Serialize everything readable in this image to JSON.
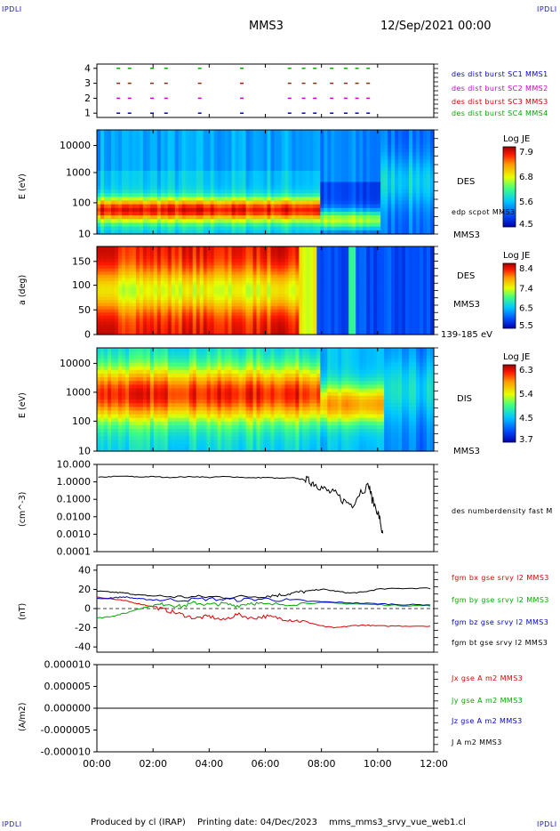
{
  "header": {
    "corner_tl": "IPDLI",
    "corner_tr": "IPDLI",
    "corner_bl": "IPDLI",
    "corner_br": "IPDLI",
    "spacecraft": "MMS3",
    "datetime": "12/Sep/2021 00:00"
  },
  "footer": {
    "produced_by": "Produced by cl (IRAP)",
    "printing_date": "Printing date: 04/Dec/2023",
    "file_name": "mms_mms3_srvy_vue_web1.cl"
  },
  "time_axis": {
    "range_hours": [
      0,
      12
    ],
    "ticks": [
      "00:00",
      "02:00",
      "04:00",
      "06:00",
      "08:00",
      "10:00",
      "12:00"
    ]
  },
  "panels": {
    "burst": {
      "yticks": [
        "4",
        "3",
        "2",
        "1"
      ],
      "legend": [
        {
          "text": "des dist burst SC1 MMS1",
          "color": "#0000cc"
        },
        {
          "text": "des dist burst SC2 MMS2",
          "color": "#cc00cc"
        },
        {
          "text": "des dist burst SC3 MMS3",
          "color": "#cc0000"
        },
        {
          "text": "des dist burst SC4 MMS4",
          "color": "#00aa00"
        }
      ]
    },
    "des_energy": {
      "ylabel": "E (eV)",
      "yticks": [
        "10000",
        "1000",
        "100",
        "10"
      ],
      "instrument": "DES",
      "sc": "MMS3",
      "overlay": "edp scpot MMS3",
      "cbar_title": "Log JE",
      "cbar_ticks": [
        "7.9",
        "6.8",
        "5.6",
        "4.5"
      ]
    },
    "des_pitch": {
      "ylabel": "a (deg)",
      "yticks": [
        "150",
        "100",
        "50",
        "0"
      ],
      "instrument": "DES",
      "sc": "MMS3",
      "energy_band": "139-185 eV",
      "cbar_title": "Log JE",
      "cbar_ticks": [
        "8.4",
        "7.4",
        "6.5",
        "5.5"
      ]
    },
    "dis_energy": {
      "ylabel": "E (eV)",
      "yticks": [
        "10000",
        "1000",
        "100",
        "10"
      ],
      "instrument": "DIS",
      "sc": "MMS3",
      "cbar_title": "Log JE",
      "cbar_ticks": [
        "6.3",
        "5.4",
        "4.5",
        "3.7"
      ]
    },
    "density": {
      "ylabel": "(cm^-3)",
      "yticks": [
        "10.000",
        "1.0000",
        "0.1000",
        "0.0100",
        "0.0010",
        "0.0001"
      ],
      "legend": "des numberdensity fast M"
    },
    "bfield": {
      "ylabel": "(nT)",
      "yticks": [
        "40",
        "20",
        "0",
        "-20",
        "-40"
      ],
      "legend": [
        {
          "text": "fgm bx gse srvy l2 MMS3",
          "color": "#dd0000"
        },
        {
          "text": "fgm by gse srvy l2 MMS3",
          "color": "#00aa00"
        },
        {
          "text": "fgm bz gse srvy l2 MMS3",
          "color": "#0000cc"
        },
        {
          "text": "fgm bt gse srvy l2 MMS3",
          "color": "#000000"
        }
      ]
    },
    "current": {
      "ylabel": "(A/m2)",
      "yticks": [
        "0.000010",
        "0.000005",
        "0.000000",
        "-0.000005",
        "-0.000010"
      ],
      "legend": [
        {
          "text": "Jx gse A m2 MMS3",
          "color": "#dd0000"
        },
        {
          "text": "Jy gse A m2 MMS3",
          "color": "#00aa00"
        },
        {
          "text": "Jz gse A m2 MMS3",
          "color": "#0000cc"
        },
        {
          "text": "J A m2 MMS3",
          "color": "#000000"
        }
      ]
    }
  },
  "chart_data": [
    {
      "type": "line",
      "panel": "density",
      "ylabel": "(cm^-3)",
      "log_scale": true,
      "ylim": [
        0.0001,
        10
      ],
      "series": [
        {
          "color": "#000000",
          "x": [
            0.05,
            0.5,
            1,
            1.5,
            2,
            2.5,
            3,
            3.5,
            4,
            4.5,
            5,
            5.5,
            6,
            6.5,
            7,
            7.3,
            7.5,
            7.7,
            7.9,
            8.2,
            8.5,
            8.8,
            9.1,
            9.4,
            9.7,
            9.8,
            10.0,
            10.1,
            10.2
          ],
          "y": [
            1.8,
            2.0,
            2.1,
            1.9,
            2.0,
            1.8,
            1.9,
            2.0,
            1.8,
            2.0,
            1.9,
            1.7,
            1.8,
            1.6,
            1.7,
            1.4,
            1.2,
            0.9,
            0.6,
            0.3,
            0.2,
            0.08,
            0.05,
            0.3,
            0.6,
            0.1,
            0.02,
            0.005,
            0.0005
          ]
        }
      ]
    },
    {
      "type": "line",
      "panel": "bfield",
      "ylabel": "(nT)",
      "ylim": [
        -45,
        45
      ],
      "series": [
        {
          "color": "#000000",
          "name": "fgm bt gse srvy l2 MMS3",
          "x": [
            0,
            0.5,
            1,
            1.5,
            2,
            3,
            4,
            5,
            6,
            6.5,
            7,
            7.5,
            8,
            8.5,
            9,
            9.5,
            10,
            11,
            12
          ],
          "y": [
            18,
            17,
            16,
            14,
            13,
            12,
            12,
            12,
            13,
            14,
            16,
            18,
            20,
            18,
            16,
            17,
            20,
            21,
            21
          ]
        },
        {
          "color": "#dd0000",
          "name": "fgm bx gse srvy l2 MMS3",
          "x": [
            0,
            0.5,
            1,
            1.5,
            2,
            2.5,
            3,
            3.5,
            4,
            4.5,
            5,
            5.5,
            6,
            6.5,
            7,
            7.5,
            8,
            8.5,
            9,
            9.5,
            10,
            11,
            12
          ],
          "y": [
            12,
            10,
            8,
            5,
            2,
            -2,
            -6,
            -10,
            -8,
            -12,
            -6,
            -10,
            -8,
            -10,
            -12,
            -14,
            -18,
            -20,
            -18,
            -17,
            -18,
            -18,
            -18
          ]
        },
        {
          "color": "#00aa00",
          "name": "fgm by gse srvy l2 MMS3",
          "x": [
            0,
            0.5,
            1,
            1.5,
            2,
            2.5,
            3,
            3.5,
            4,
            4.5,
            5,
            5.5,
            6,
            7,
            8,
            9,
            10,
            11,
            12
          ],
          "y": [
            -10,
            -8,
            -5,
            0,
            3,
            5,
            2,
            6,
            4,
            5,
            3,
            6,
            4,
            5,
            6,
            5,
            4,
            3,
            3
          ]
        },
        {
          "color": "#0000cc",
          "name": "fgm bz gse srvy l2 MMS3",
          "x": [
            0,
            0.5,
            1,
            1.5,
            2,
            3,
            4,
            5,
            6,
            7,
            8,
            9,
            10,
            11,
            12
          ],
          "y": [
            10,
            11,
            12,
            10,
            9,
            9,
            10,
            9,
            10,
            8,
            7,
            6,
            5,
            4,
            4
          ]
        }
      ]
    },
    {
      "type": "line",
      "panel": "current",
      "ylabel": "(A/m2)",
      "ylim": [
        -1e-05,
        1e-05
      ],
      "series": [
        {
          "color": "#000000",
          "name": "J A m2 MMS3",
          "x": [
            0,
            2,
            4,
            6,
            8,
            10,
            12
          ],
          "y": [
            0,
            0,
            0,
            0,
            0,
            0,
            0
          ]
        }
      ]
    }
  ]
}
